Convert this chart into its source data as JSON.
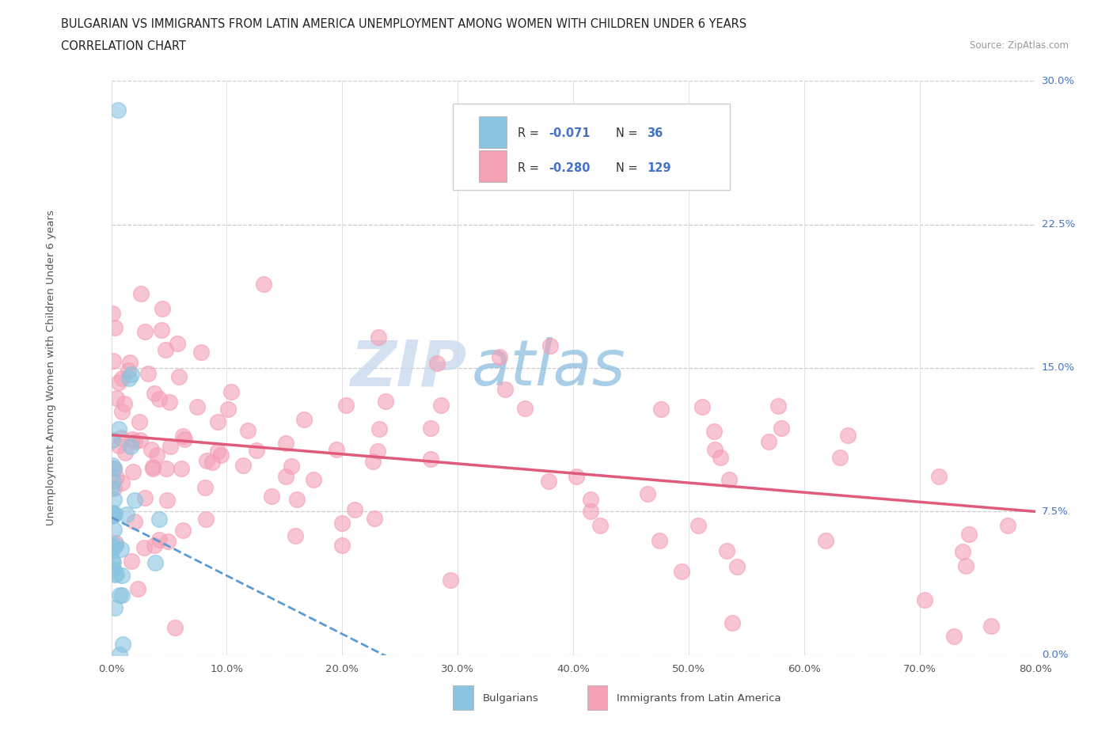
{
  "title_line1": "BULGARIAN VS IMMIGRANTS FROM LATIN AMERICA UNEMPLOYMENT AMONG WOMEN WITH CHILDREN UNDER 6 YEARS",
  "title_line2": "CORRELATION CHART",
  "source": "Source: ZipAtlas.com",
  "ylabel_label": "Unemployment Among Women with Children Under 6 years",
  "xlim": [
    0.0,
    0.8
  ],
  "ylim": [
    0.0,
    0.3
  ],
  "legend_label1": "Bulgarians",
  "legend_label2": "Immigrants from Latin America",
  "r1": "-0.071",
  "n1": "36",
  "r2": "-0.280",
  "n2": "129",
  "color_bulgarian": "#89c4e1",
  "color_latin": "#f4a0b5",
  "color_trendline_bulgarian": "#5b9bd5",
  "color_trendline_latin": "#e05a7a",
  "background_color": "#ffffff",
  "watermark_zip": "#b8cfe8",
  "watermark_atlas": "#b8d8f0",
  "x_tick_vals": [
    0.0,
    0.1,
    0.2,
    0.3,
    0.4,
    0.5,
    0.6,
    0.7,
    0.8
  ],
  "y_tick_vals": [
    0.0,
    0.075,
    0.15,
    0.225,
    0.3
  ],
  "x_labels": [
    "0.0%",
    "10.0%",
    "20.0%",
    "30.0%",
    "40.0%",
    "50.0%",
    "60.0%",
    "70.0%",
    "80.0%"
  ],
  "y_labels": [
    "0.0%",
    "7.5%",
    "15.0%",
    "22.5%",
    "30.0%"
  ]
}
